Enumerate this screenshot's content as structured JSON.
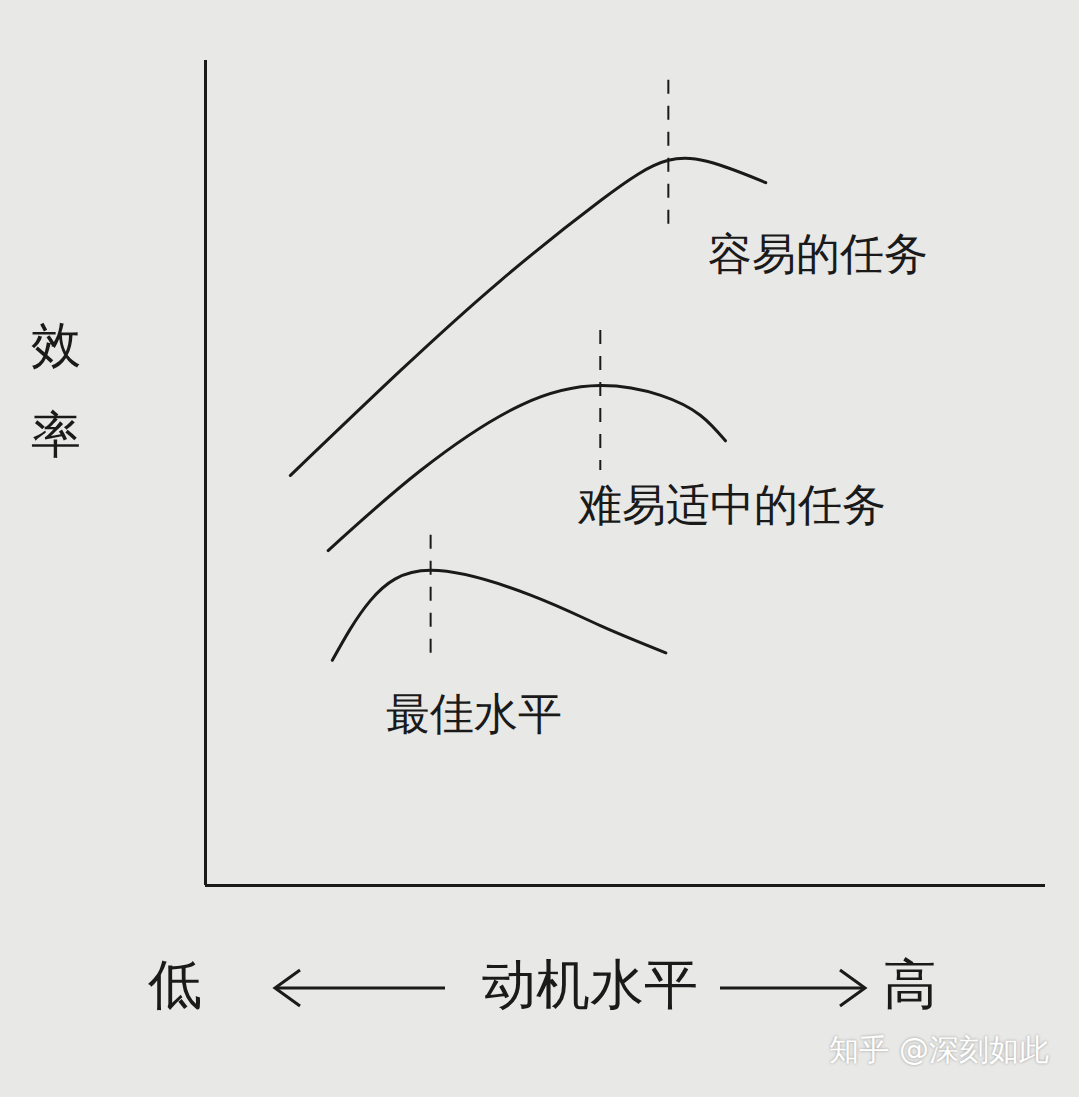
{
  "chart_data": {
    "type": "line",
    "ylabel": "效率",
    "xlabel": "动机水平",
    "xlabel_low": "低",
    "xlabel_high": "高",
    "watermark": "知乎 @深刻如此",
    "xlim": [
      0,
      100
    ],
    "ylim": [
      0,
      100
    ],
    "xticks": [],
    "yticks": [],
    "tick_labels": false,
    "grid": false,
    "series": [
      {
        "name": "容易的任务",
        "color": "#1a1a1a",
        "x": [
          10.1,
          23.2,
          35.1,
          47.0,
          55.1,
          61.3,
          66.7
        ],
        "values": [
          49.7,
          62.4,
          73.3,
          83.0,
          87.9,
          87.3,
          85.2
        ]
      },
      {
        "name": "难易适中的任务",
        "color": "#1a1a1a",
        "x": [
          14.6,
          25.6,
          37.5,
          47.0,
          54.2,
          58.9,
          61.9
        ],
        "values": [
          40.6,
          50.3,
          58.2,
          60.6,
          59.4,
          57.0,
          53.9
        ]
      },
      {
        "name": "最佳水平",
        "color": "#1a1a1a",
        "x": [
          15.1,
          19.6,
          26.8,
          38.7,
          47.0,
          54.8
        ],
        "values": [
          27.3,
          34.5,
          38.2,
          35.2,
          31.5,
          28.2
        ]
      }
    ]
  }
}
